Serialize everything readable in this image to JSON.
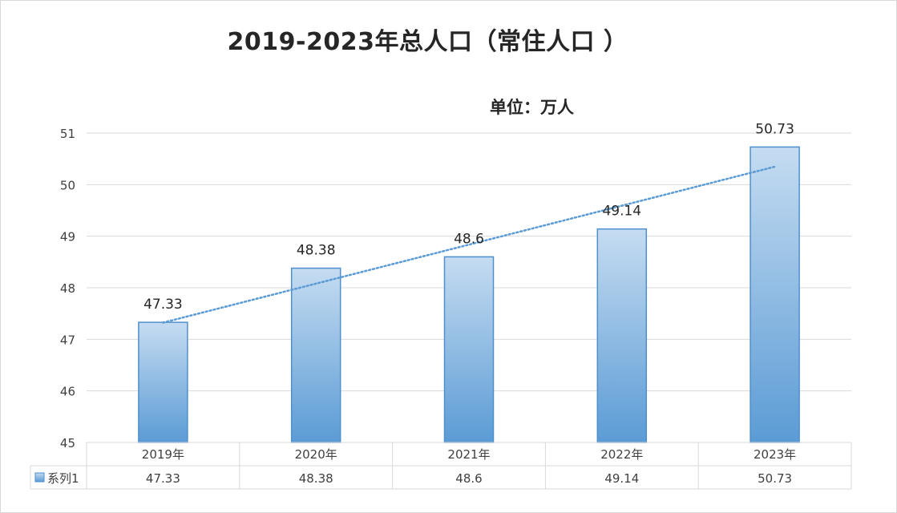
{
  "chart_data": {
    "type": "bar",
    "title": "2019-2023年总人口（常住人口 ）",
    "subtitle": "单位：万人",
    "categories": [
      "2019年",
      "2020年",
      "2021年",
      "2022年",
      "2023年"
    ],
    "series": [
      {
        "name": "系列1",
        "values": [
          47.33,
          48.38,
          48.6,
          49.14,
          50.73
        ]
      }
    ],
    "data_labels": [
      "47.33",
      "48.38",
      "48.6",
      "49.14",
      "50.73"
    ],
    "table_values": [
      "47.33",
      "48.38",
      "48.6",
      "49.14",
      "50.73"
    ],
    "ylim": [
      45,
      51
    ],
    "yticks": [
      45,
      46,
      47,
      48,
      49,
      50,
      51
    ],
    "trendline": "linear",
    "grid": true,
    "data_table": true,
    "colors": {
      "bar_top": "#c5dcf1",
      "bar_bottom": "#5b9bd5",
      "bar_border": "#4f8fce",
      "trendline": "#5b9bd5",
      "grid": "#d9d9d9",
      "text": "#262626",
      "axis_text": "#404040"
    }
  }
}
